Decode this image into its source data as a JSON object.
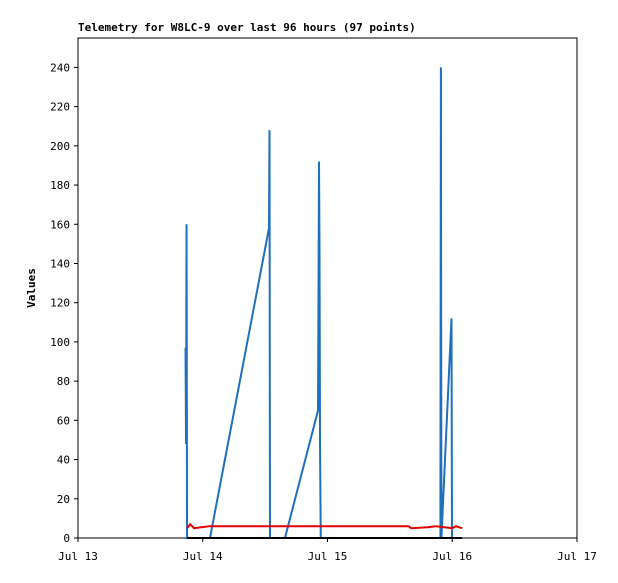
{
  "chart_data": {
    "type": "line",
    "title": "Telemetry for W8LC-9 over last 96 hours (97 points)",
    "ylabel": "Values",
    "xlim": [
      13,
      17
    ],
    "xticks": [
      {
        "value": 13,
        "label": "Jul 13"
      },
      {
        "value": 14,
        "label": "Jul 14"
      },
      {
        "value": 15,
        "label": "Jul 15"
      },
      {
        "value": 16,
        "label": "Jul 16"
      },
      {
        "value": 17,
        "label": "Jul 17"
      }
    ],
    "ylim": [
      0,
      255
    ],
    "yticks": [
      0,
      20,
      40,
      60,
      80,
      100,
      120,
      140,
      160,
      180,
      200,
      220,
      240
    ],
    "series": [
      {
        "color": "#1f6fbf",
        "x": [
          13.862,
          13.866,
          13.87,
          13.874,
          14.058,
          14.531,
          14.535,
          14.539,
          14.659,
          14.924,
          14.928,
          14.932,
          14.936,
          14.94,
          14.946,
          15.905,
          15.909,
          15.913,
          15.994,
          15.998
        ],
        "values": [
          97,
          48,
          160,
          0,
          0,
          158,
          208,
          0,
          0,
          65,
          128,
          192,
          145,
          48,
          0,
          0,
          240,
          0,
          112,
          0
        ]
      },
      {
        "color": "#e00000",
        "x": [
          13.874,
          13.9,
          13.93,
          14.05,
          15.65,
          15.67,
          15.8,
          15.87,
          16.0,
          16.03,
          16.08
        ],
        "values": [
          5,
          7,
          5,
          6,
          6,
          5,
          5.5,
          6,
          5,
          6,
          5
        ]
      },
      {
        "color": "#000000",
        "x": [
          13.874,
          16.08
        ],
        "values": [
          0,
          0
        ]
      }
    ]
  }
}
